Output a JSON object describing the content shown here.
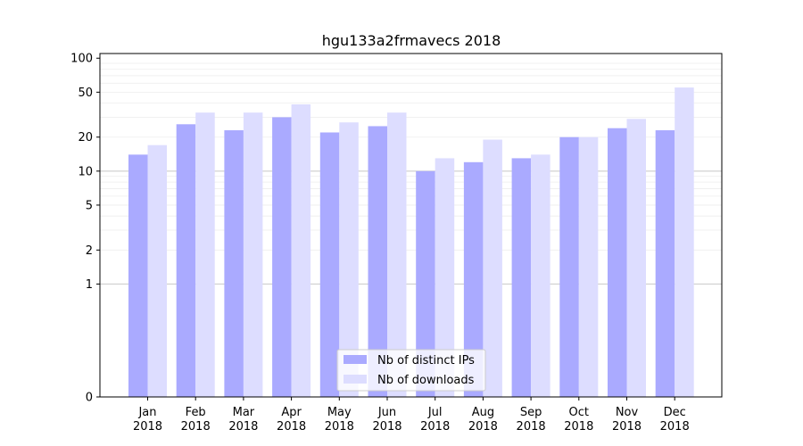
{
  "chart_data": {
    "type": "bar",
    "title": "hgu133a2frmavecs 2018",
    "xlabel": "",
    "ylabel": "",
    "y_scale": "symlog",
    "ylim": [
      0,
      110
    ],
    "y_ticks": [
      0,
      1,
      2,
      5,
      10,
      20,
      50,
      100
    ],
    "y_tick_labels": [
      "0",
      "1",
      "2",
      "5",
      "10",
      "20",
      "50",
      "100"
    ],
    "grid": "horizontal",
    "legend_position": "bottom-center",
    "categories": [
      {
        "month": "Jan",
        "year": "2018"
      },
      {
        "month": "Feb",
        "year": "2018"
      },
      {
        "month": "Mar",
        "year": "2018"
      },
      {
        "month": "Apr",
        "year": "2018"
      },
      {
        "month": "May",
        "year": "2018"
      },
      {
        "month": "Jun",
        "year": "2018"
      },
      {
        "month": "Jul",
        "year": "2018"
      },
      {
        "month": "Aug",
        "year": "2018"
      },
      {
        "month": "Sep",
        "year": "2018"
      },
      {
        "month": "Oct",
        "year": "2018"
      },
      {
        "month": "Nov",
        "year": "2018"
      },
      {
        "month": "Dec",
        "year": "2018"
      }
    ],
    "series": [
      {
        "name": "Nb of distinct IPs",
        "color": "#aaaaff",
        "values": [
          14,
          26,
          23,
          30,
          22,
          25,
          10,
          12,
          13,
          20,
          24,
          23
        ]
      },
      {
        "name": "Nb of downloads",
        "color": "#ddddff",
        "values": [
          17,
          33,
          33,
          39,
          27,
          33,
          13,
          19,
          14,
          20,
          29,
          55
        ]
      }
    ]
  }
}
